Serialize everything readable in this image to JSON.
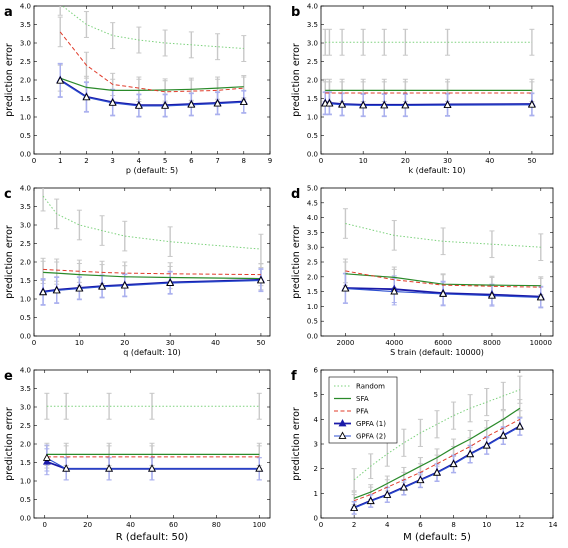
{
  "colors": {
    "random": "#7bd17b",
    "sfa": "#2a8a2a",
    "pfa": "#e03b2a",
    "gpfa1": "#1a1aa8",
    "gpfa2": "#2c4fd0",
    "err_gray": "#c8c8c8",
    "err_blue": "#aab0ee"
  },
  "legend": {
    "random": "Random",
    "sfa": "SFA",
    "pfa": "PFA",
    "gpfa1": "GPFA (1)",
    "gpfa2": "GPFA (2)"
  },
  "chart_data": [
    {
      "panel": "a",
      "type": "line",
      "xlabel": "p (default: 5)",
      "ylabel": "prediction error",
      "xlim": [
        0,
        9
      ],
      "ylim": [
        0,
        4.0
      ],
      "xticks": [
        0,
        1,
        2,
        3,
        4,
        5,
        6,
        7,
        8,
        9
      ],
      "yticks": [
        0,
        0.5,
        1.0,
        1.5,
        2.0,
        2.5,
        3.0,
        3.5,
        4.0
      ],
      "ytick_labels": [
        "0.0",
        "0.5",
        "1.0",
        "1.5",
        "2.0",
        "2.5",
        "3.0",
        "3.5",
        "4.0"
      ],
      "x": [
        1,
        2,
        3,
        4,
        5,
        6,
        7,
        8
      ],
      "series": [
        {
          "key": "random",
          "values": [
            4.05,
            3.5,
            3.2,
            3.08,
            3.0,
            2.95,
            2.9,
            2.85
          ],
          "err": [
            0.3,
            0.35,
            0.35,
            0.35,
            0.35,
            0.35,
            0.35,
            0.35
          ]
        },
        {
          "key": "sfa",
          "values": [
            2.05,
            1.8,
            1.72,
            1.72,
            1.73,
            1.75,
            1.78,
            1.82
          ],
          "err": [
            0.35,
            0.3,
            0.3,
            0.3,
            0.3,
            0.3,
            0.3,
            0.3
          ]
        },
        {
          "key": "pfa",
          "values": [
            3.3,
            2.4,
            1.88,
            1.78,
            1.68,
            1.7,
            1.72,
            1.78
          ],
          "err": [
            0.4,
            0.35,
            0.3,
            0.3,
            0.3,
            0.3,
            0.3,
            0.3
          ]
        },
        {
          "key": "gpfa1",
          "values": [
            2.0,
            1.55,
            1.4,
            1.32,
            1.32,
            1.35,
            1.38,
            1.42
          ],
          "err": [
            0.45,
            0.4,
            0.35,
            0.3,
            0.3,
            0.3,
            0.3,
            0.3
          ]
        },
        {
          "key": "gpfa2",
          "values": [
            1.98,
            1.53,
            1.38,
            1.3,
            1.3,
            1.33,
            1.36,
            1.4
          ],
          "err": [
            0.45,
            0.4,
            0.35,
            0.3,
            0.3,
            0.3,
            0.3,
            0.3
          ]
        }
      ]
    },
    {
      "panel": "b",
      "type": "line",
      "xlabel": "k (default: 10)",
      "ylabel": "prediction error",
      "xlim": [
        0,
        55
      ],
      "ylim": [
        0,
        4.0
      ],
      "xticks": [
        0,
        10,
        20,
        30,
        40,
        50
      ],
      "yticks": [
        0,
        0.5,
        1.0,
        1.5,
        2.0,
        2.5,
        3.0,
        3.5,
        4.0
      ],
      "ytick_labels": [
        "0.0",
        "0.5",
        "1.0",
        "1.5",
        "2.0",
        "2.5",
        "3.0",
        "3.5",
        "4.0"
      ],
      "x": [
        1,
        2,
        5,
        10,
        15,
        20,
        30,
        50
      ],
      "series": [
        {
          "key": "random",
          "values": [
            3.02,
            3.02,
            3.02,
            3.02,
            3.02,
            3.02,
            3.02,
            3.02
          ],
          "err": [
            0.35,
            0.35,
            0.35,
            0.35,
            0.35,
            0.35,
            0.35,
            0.35
          ]
        },
        {
          "key": "sfa",
          "values": [
            1.72,
            1.72,
            1.72,
            1.72,
            1.72,
            1.72,
            1.72,
            1.72
          ],
          "err": [
            0.3,
            0.3,
            0.3,
            0.3,
            0.3,
            0.3,
            0.3,
            0.3
          ]
        },
        {
          "key": "pfa",
          "values": [
            1.65,
            1.65,
            1.65,
            1.65,
            1.65,
            1.65,
            1.65,
            1.65
          ],
          "err": [
            0.3,
            0.3,
            0.3,
            0.3,
            0.3,
            0.3,
            0.3,
            0.3
          ]
        },
        {
          "key": "gpfa1",
          "values": [
            1.38,
            1.38,
            1.35,
            1.33,
            1.33,
            1.33,
            1.34,
            1.35
          ],
          "err": [
            0.3,
            0.3,
            0.3,
            0.3,
            0.3,
            0.3,
            0.3,
            0.3
          ]
        },
        {
          "key": "gpfa2",
          "values": [
            1.36,
            1.36,
            1.33,
            1.31,
            1.31,
            1.31,
            1.32,
            1.33
          ],
          "err": [
            0.3,
            0.3,
            0.3,
            0.3,
            0.3,
            0.3,
            0.3,
            0.3
          ]
        }
      ]
    },
    {
      "panel": "c",
      "type": "line",
      "xlabel": "q (default: 10)",
      "ylabel": "prediction error",
      "xlim": [
        0,
        52
      ],
      "ylim": [
        0,
        4.0
      ],
      "xticks": [
        0,
        10,
        20,
        30,
        40,
        50
      ],
      "yticks": [
        0,
        0.5,
        1.0,
        1.5,
        2.0,
        2.5,
        3.0,
        3.5,
        4.0
      ],
      "ytick_labels": [
        "0.0",
        "0.5",
        "1.0",
        "1.5",
        "2.0",
        "2.5",
        "3.0",
        "3.5",
        "4.0"
      ],
      "x": [
        2,
        5,
        10,
        15,
        20,
        30,
        50
      ],
      "series": [
        {
          "key": "random",
          "values": [
            3.78,
            3.3,
            3.0,
            2.85,
            2.7,
            2.55,
            2.35
          ],
          "err": [
            0.4,
            0.4,
            0.4,
            0.4,
            0.4,
            0.4,
            0.4
          ]
        },
        {
          "key": "sfa",
          "values": [
            1.72,
            1.7,
            1.66,
            1.63,
            1.6,
            1.58,
            1.55
          ],
          "err": [
            0.3,
            0.3,
            0.3,
            0.3,
            0.3,
            0.3,
            0.3
          ]
        },
        {
          "key": "pfa",
          "values": [
            1.8,
            1.78,
            1.75,
            1.72,
            1.7,
            1.68,
            1.66
          ],
          "err": [
            0.3,
            0.3,
            0.3,
            0.3,
            0.3,
            0.3,
            0.3
          ]
        },
        {
          "key": "gpfa1",
          "values": [
            1.2,
            1.25,
            1.3,
            1.35,
            1.38,
            1.45,
            1.52
          ],
          "err": [
            0.35,
            0.35,
            0.3,
            0.3,
            0.3,
            0.3,
            0.3
          ]
        },
        {
          "key": "gpfa2",
          "values": [
            1.18,
            1.23,
            1.28,
            1.33,
            1.36,
            1.43,
            1.5
          ],
          "err": [
            0.35,
            0.35,
            0.3,
            0.3,
            0.3,
            0.3,
            0.3
          ]
        }
      ]
    },
    {
      "panel": "d",
      "type": "line",
      "xlabel": "S train (default: 10000)",
      "ylabel": "prediction error",
      "xlim": [
        1000,
        10500
      ],
      "ylim": [
        0,
        5.0
      ],
      "xticks": [
        2000,
        4000,
        6000,
        8000,
        10000
      ],
      "yticks": [
        0,
        0.5,
        1.0,
        1.5,
        2.0,
        2.5,
        3.0,
        3.5,
        4.0,
        4.5,
        5.0
      ],
      "ytick_labels": [
        "0.0",
        "0.5",
        "1.0",
        "1.5",
        "2.0",
        "2.5",
        "3.0",
        "3.5",
        "4.0",
        "4.5",
        "5.0"
      ],
      "x": [
        2000,
        4000,
        6000,
        8000,
        10000
      ],
      "series": [
        {
          "key": "random",
          "values": [
            3.8,
            3.4,
            3.2,
            3.1,
            3.0
          ],
          "err": [
            0.5,
            0.5,
            0.45,
            0.45,
            0.45
          ]
        },
        {
          "key": "sfa",
          "values": [
            2.1,
            1.98,
            1.75,
            1.72,
            1.7
          ],
          "err": [
            0.4,
            0.35,
            0.35,
            0.3,
            0.3
          ]
        },
        {
          "key": "pfa",
          "values": [
            2.2,
            1.9,
            1.72,
            1.68,
            1.65
          ],
          "err": [
            0.4,
            0.35,
            0.35,
            0.3,
            0.3
          ]
        },
        {
          "key": "gpfa1",
          "values": [
            1.62,
            1.58,
            1.45,
            1.4,
            1.33
          ],
          "err": [
            0.5,
            0.45,
            0.4,
            0.35,
            0.35
          ]
        },
        {
          "key": "gpfa2",
          "values": [
            1.6,
            1.5,
            1.42,
            1.36,
            1.3
          ],
          "err": [
            0.5,
            0.45,
            0.4,
            0.35,
            0.35
          ]
        }
      ]
    },
    {
      "panel": "e",
      "type": "line",
      "xlabel": "R (default: 50)",
      "ylabel": "prediction error",
      "xlim": [
        -5,
        105
      ],
      "ylim": [
        0,
        4.0
      ],
      "xticks": [
        0,
        20,
        40,
        60,
        80,
        100
      ],
      "yticks": [
        0,
        0.5,
        1.0,
        1.5,
        2.0,
        2.5,
        3.0,
        3.5,
        4.0
      ],
      "ytick_labels": [
        "0.0",
        "0.5",
        "1.0",
        "1.5",
        "2.0",
        "2.5",
        "3.0",
        "3.5",
        "4.0"
      ],
      "x": [
        1,
        10,
        30,
        50,
        100
      ],
      "series": [
        {
          "key": "random",
          "values": [
            3.02,
            3.02,
            3.02,
            3.02,
            3.02
          ],
          "err": [
            0.35,
            0.35,
            0.35,
            0.35,
            0.35
          ]
        },
        {
          "key": "sfa",
          "values": [
            1.72,
            1.72,
            1.72,
            1.72,
            1.72
          ],
          "err": [
            0.3,
            0.3,
            0.3,
            0.3,
            0.3
          ]
        },
        {
          "key": "pfa",
          "values": [
            1.65,
            1.65,
            1.65,
            1.65,
            1.65
          ],
          "err": [
            0.3,
            0.3,
            0.3,
            0.3,
            0.3
          ]
        },
        {
          "key": "gpfa1",
          "values": [
            1.52,
            1.33,
            1.33,
            1.33,
            1.33
          ],
          "err": [
            0.35,
            0.3,
            0.3,
            0.3,
            0.3
          ]
        },
        {
          "key": "gpfa2",
          "values": [
            1.62,
            1.33,
            1.33,
            1.33,
            1.33
          ],
          "err": [
            0.35,
            0.3,
            0.3,
            0.3,
            0.3
          ]
        }
      ]
    },
    {
      "panel": "f",
      "type": "line",
      "xlabel": "M (default: 5)",
      "ylabel": "prediction error",
      "xlim": [
        0,
        14
      ],
      "ylim": [
        0,
        6
      ],
      "xticks": [
        0,
        2,
        4,
        6,
        8,
        10,
        12,
        14
      ],
      "yticks": [
        0,
        1,
        2,
        3,
        4,
        5,
        6
      ],
      "ytick_labels": [
        "0",
        "1",
        "2",
        "3",
        "4",
        "5",
        "6"
      ],
      "x": [
        2,
        3,
        4,
        5,
        6,
        7,
        8,
        9,
        10,
        11,
        12
      ],
      "series": [
        {
          "key": "random",
          "values": [
            1.55,
            2.1,
            2.6,
            3.05,
            3.45,
            3.8,
            4.15,
            4.45,
            4.7,
            4.95,
            5.2
          ],
          "err": [
            0.45,
            0.5,
            0.5,
            0.55,
            0.55,
            0.55,
            0.55,
            0.55,
            0.55,
            0.55,
            0.55
          ]
        },
        {
          "key": "sfa",
          "values": [
            0.8,
            1.05,
            1.4,
            1.75,
            2.1,
            2.45,
            2.85,
            3.2,
            3.6,
            4.0,
            4.45
          ],
          "err": [
            0.25,
            0.3,
            0.3,
            0.3,
            0.35,
            0.35,
            0.35,
            0.35,
            0.35,
            0.35,
            0.35
          ]
        },
        {
          "key": "pfa",
          "values": [
            0.7,
            0.95,
            1.25,
            1.55,
            1.85,
            2.2,
            2.55,
            2.9,
            3.3,
            3.65,
            4.0
          ],
          "err": [
            0.25,
            0.3,
            0.3,
            0.3,
            0.35,
            0.35,
            0.35,
            0.35,
            0.35,
            0.35,
            0.35
          ]
        },
        {
          "key": "gpfa1",
          "values": [
            0.42,
            0.7,
            0.95,
            1.25,
            1.55,
            1.85,
            2.2,
            2.6,
            2.95,
            3.35,
            3.72
          ],
          "err": [
            0.25,
            0.25,
            0.3,
            0.3,
            0.3,
            0.35,
            0.35,
            0.35,
            0.35,
            0.35,
            0.35
          ]
        },
        {
          "key": "gpfa2",
          "values": [
            0.4,
            0.68,
            0.93,
            1.23,
            1.53,
            1.83,
            2.18,
            2.58,
            2.93,
            3.33,
            3.7
          ],
          "err": [
            0.25,
            0.25,
            0.3,
            0.3,
            0.3,
            0.35,
            0.35,
            0.35,
            0.35,
            0.35,
            0.35
          ]
        }
      ]
    }
  ]
}
